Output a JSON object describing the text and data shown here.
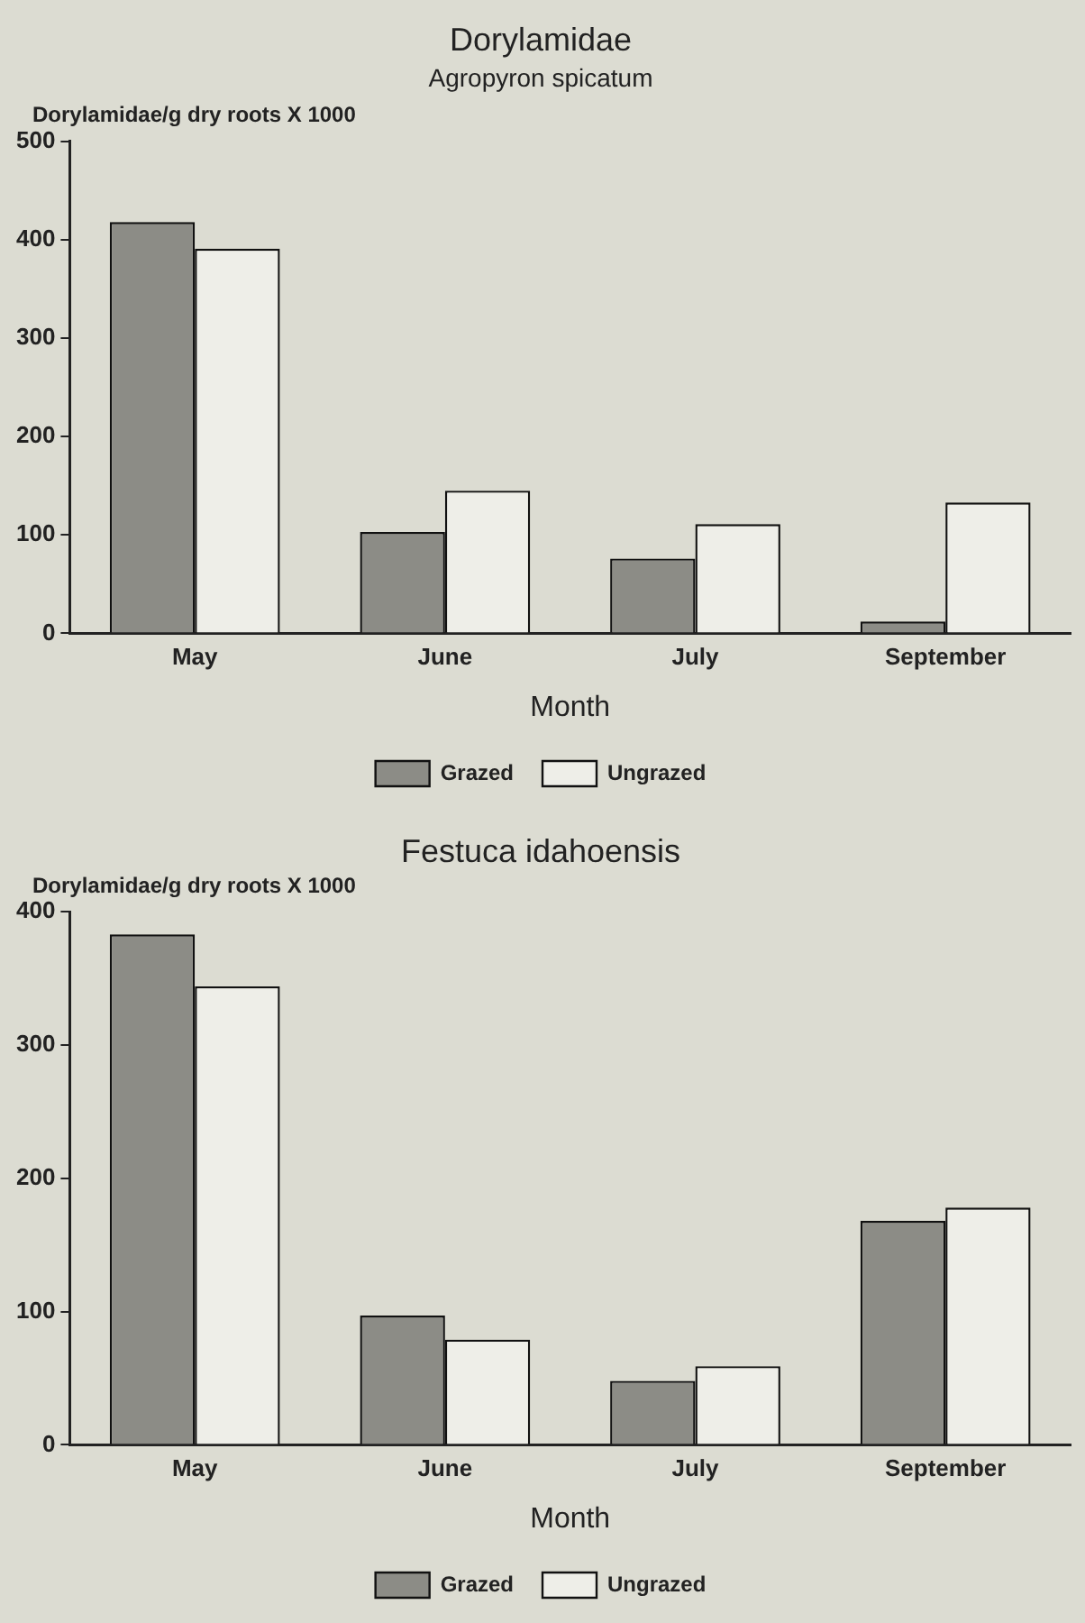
{
  "chart_data": [
    {
      "type": "bar",
      "title": "Dorylamidae",
      "subtitle": "Agropyron spicatum",
      "xlabel": "Month",
      "ylabel": "Dorylamidae/g dry roots X 1000",
      "categories": [
        "May",
        "June",
        "July",
        "September"
      ],
      "series": [
        {
          "name": "Grazed",
          "color": "#8c8c86",
          "values": [
            418,
            103,
            76,
            12
          ]
        },
        {
          "name": "Ungrazed",
          "color": "#eeeee8",
          "values": [
            391,
            145,
            111,
            133
          ]
        }
      ],
      "ylim": [
        0,
        500
      ],
      "yticks": [
        0,
        100,
        200,
        300,
        400,
        500
      ],
      "grid": false,
      "legend": "bottom"
    },
    {
      "type": "bar",
      "title": "Festuca idahoensis",
      "xlabel": "Month",
      "ylabel": "Dorylamidae/g dry roots X 1000",
      "categories": [
        "May",
        "June",
        "July",
        "September"
      ],
      "series": [
        {
          "name": "Grazed",
          "color": "#8c8c86",
          "values": [
            383,
            97,
            48,
            168
          ]
        },
        {
          "name": "Ungrazed",
          "color": "#eeeee8",
          "values": [
            344,
            79,
            59,
            178
          ]
        }
      ],
      "ylim": [
        0,
        400
      ],
      "yticks": [
        0,
        100,
        200,
        300,
        400
      ],
      "grid": false,
      "legend": "bottom"
    }
  ]
}
